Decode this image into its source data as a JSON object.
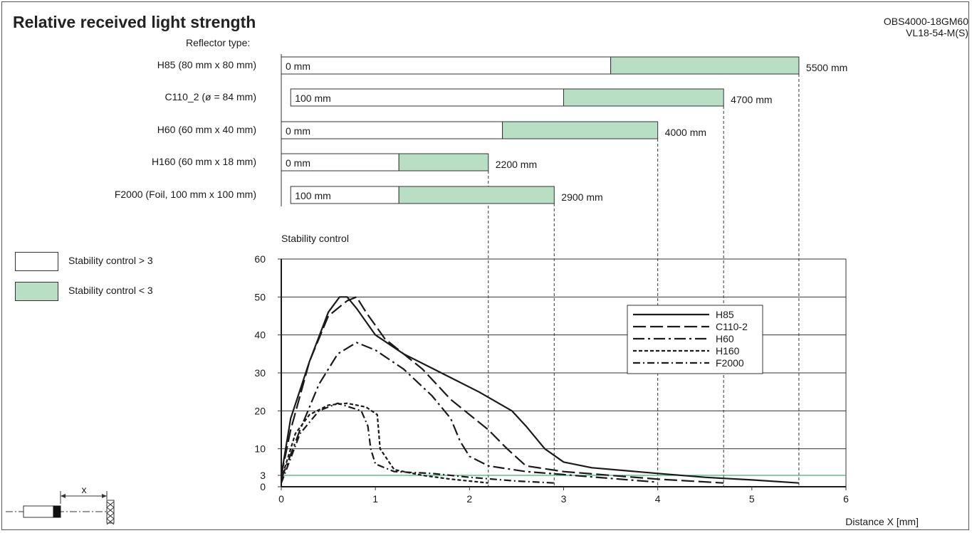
{
  "header": {
    "title": "Relative received light strength",
    "model_line1": "OBS4000-18GM60",
    "model_line2": "VL18-54-M(S)",
    "reflector_type_label": "Reflector type:"
  },
  "stability_legend": {
    "above": "Stability control > 3",
    "below": "Stability control < 3"
  },
  "colors": {
    "stable_fill": "#b8dfc4",
    "threshold_line": "#3fb17a",
    "axis": "#1a1a1a"
  },
  "chart_data": [
    {
      "type": "bar",
      "subtype": "range-bars",
      "rows": [
        {
          "label": "H85 (80 mm x 80 mm)",
          "start": 0,
          "stable_from": 3500,
          "end": 5500,
          "start_label": "0 mm",
          "end_label": "5500 mm"
        },
        {
          "label": "C110_2 (ø = 84 mm)",
          "start": 100,
          "stable_from": 3000,
          "end": 4700,
          "start_label": "100 mm",
          "end_label": "4700 mm"
        },
        {
          "label": "H60 (60 mm x 40 mm)",
          "start": 0,
          "stable_from": 2350,
          "end": 4000,
          "start_label": "0 mm",
          "end_label": "4000 mm"
        },
        {
          "label": "H160 (60 mm x 18 mm)",
          "start": 0,
          "stable_from": 1250,
          "end": 2200,
          "start_label": "0 mm",
          "end_label": "2200 mm"
        },
        {
          "label": "F2000 (Foil, 100 mm x 100 mm)",
          "start": 100,
          "stable_from": 1250,
          "end": 2900,
          "start_label": "100 mm",
          "end_label": "2900 mm"
        }
      ],
      "xlim_mm": [
        0,
        6000
      ]
    },
    {
      "type": "line",
      "ylabel": "Stability control",
      "xlabel": "Distance X [mm]",
      "xlim": [
        0,
        6
      ],
      "ylim": [
        0,
        60
      ],
      "x_ticks": [
        "0",
        "1",
        "2",
        "3",
        "4",
        "5",
        "6"
      ],
      "y_ticks": [
        "0",
        "3",
        "10",
        "20",
        "30",
        "40",
        "50",
        "60"
      ],
      "threshold": 3,
      "grid": true,
      "legend_position": "top-right",
      "series": [
        {
          "name": "H85",
          "dash": "solid",
          "points": [
            [
              0,
              3
            ],
            [
              0.1,
              18
            ],
            [
              0.3,
              33
            ],
            [
              0.5,
              46
            ],
            [
              0.62,
              50
            ],
            [
              0.7,
              50
            ],
            [
              0.8,
              47
            ],
            [
              1.0,
              40
            ],
            [
              1.3,
              35
            ],
            [
              1.7,
              30
            ],
            [
              2.1,
              25
            ],
            [
              2.45,
              20
            ],
            [
              2.6,
              16
            ],
            [
              2.8,
              10
            ],
            [
              3.0,
              6.5
            ],
            [
              3.3,
              5
            ],
            [
              4.0,
              3.5
            ],
            [
              4.5,
              2.5
            ],
            [
              5.0,
              1.8
            ],
            [
              5.5,
              1
            ]
          ]
        },
        {
          "name": "C110-2",
          "dash": "longdash",
          "points": [
            [
              0,
              3
            ],
            [
              0.1,
              15
            ],
            [
              0.3,
              33
            ],
            [
              0.5,
              45
            ],
            [
              0.7,
              49
            ],
            [
              0.8,
              50
            ],
            [
              0.9,
              46
            ],
            [
              1.1,
              39
            ],
            [
              1.5,
              31
            ],
            [
              1.8,
              23
            ],
            [
              2.2,
              15
            ],
            [
              2.4,
              10
            ],
            [
              2.6,
              5.5
            ],
            [
              3.0,
              4
            ],
            [
              3.5,
              3
            ],
            [
              4.0,
              2
            ],
            [
              4.7,
              1
            ]
          ]
        },
        {
          "name": "H60",
          "dash": "dashdot",
          "points": [
            [
              0,
              2
            ],
            [
              0.2,
              15
            ],
            [
              0.4,
              27
            ],
            [
              0.6,
              35
            ],
            [
              0.8,
              38
            ],
            [
              1.0,
              36
            ],
            [
              1.3,
              31
            ],
            [
              1.6,
              24
            ],
            [
              1.8,
              18
            ],
            [
              1.9,
              12
            ],
            [
              2.0,
              8
            ],
            [
              2.2,
              5.5
            ],
            [
              2.6,
              4
            ],
            [
              3.0,
              3.2
            ],
            [
              3.5,
              2.2
            ],
            [
              4.0,
              1.2
            ]
          ]
        },
        {
          "name": "H160",
          "dash": "shortdash",
          "points": [
            [
              0,
              2
            ],
            [
              0.15,
              14
            ],
            [
              0.3,
              19
            ],
            [
              0.5,
              21.5
            ],
            [
              0.7,
              22
            ],
            [
              0.9,
              21
            ],
            [
              1.02,
              19
            ],
            [
              1.05,
              10
            ],
            [
              1.2,
              4.5
            ],
            [
              1.5,
              3
            ],
            [
              1.8,
              2
            ],
            [
              2.2,
              1
            ]
          ]
        },
        {
          "name": "F2000",
          "dash": "dashdot2",
          "points": [
            [
              0,
              1
            ],
            [
              0.2,
              14
            ],
            [
              0.4,
              20
            ],
            [
              0.6,
              22
            ],
            [
              0.85,
              20
            ],
            [
              0.92,
              16
            ],
            [
              0.95,
              10
            ],
            [
              1.0,
              6
            ],
            [
              1.2,
              4
            ],
            [
              1.6,
              3.5
            ],
            [
              2.0,
              2.5
            ],
            [
              2.5,
              1.5
            ],
            [
              2.9,
              1
            ]
          ]
        }
      ]
    }
  ]
}
